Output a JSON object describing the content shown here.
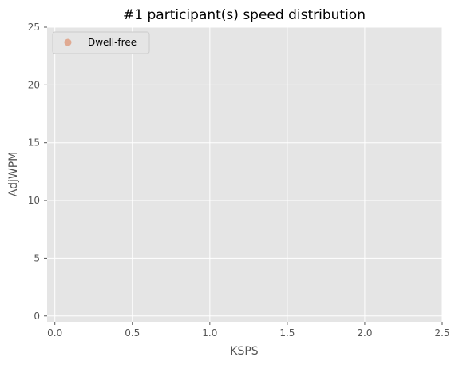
{
  "chart_data": {
    "type": "scatter",
    "title": "#1 participant(s) speed distribution",
    "xlabel": "KSPS",
    "ylabel": "AdjWPM",
    "xlim": [
      -0.05,
      2.5
    ],
    "ylim": [
      -0.5,
      25
    ],
    "xticks": [
      0.0,
      0.5,
      1.0,
      1.5,
      2.0,
      2.5
    ],
    "xtick_labels": [
      "0.0",
      "0.5",
      "1.0",
      "1.5",
      "2.0",
      "2.5"
    ],
    "yticks": [
      0,
      5,
      10,
      15,
      20,
      25
    ],
    "ytick_labels": [
      "0",
      "5",
      "10",
      "15",
      "20",
      "25"
    ],
    "grid": true,
    "legend_position": "top-left",
    "colors": {
      "plot_background": "#e5e5e5",
      "grid": "#ffffff",
      "text": "#555555",
      "title": "#000000"
    },
    "series": [
      {
        "name": "Dwell-free",
        "color": "#e0aa92",
        "points": []
      }
    ]
  }
}
